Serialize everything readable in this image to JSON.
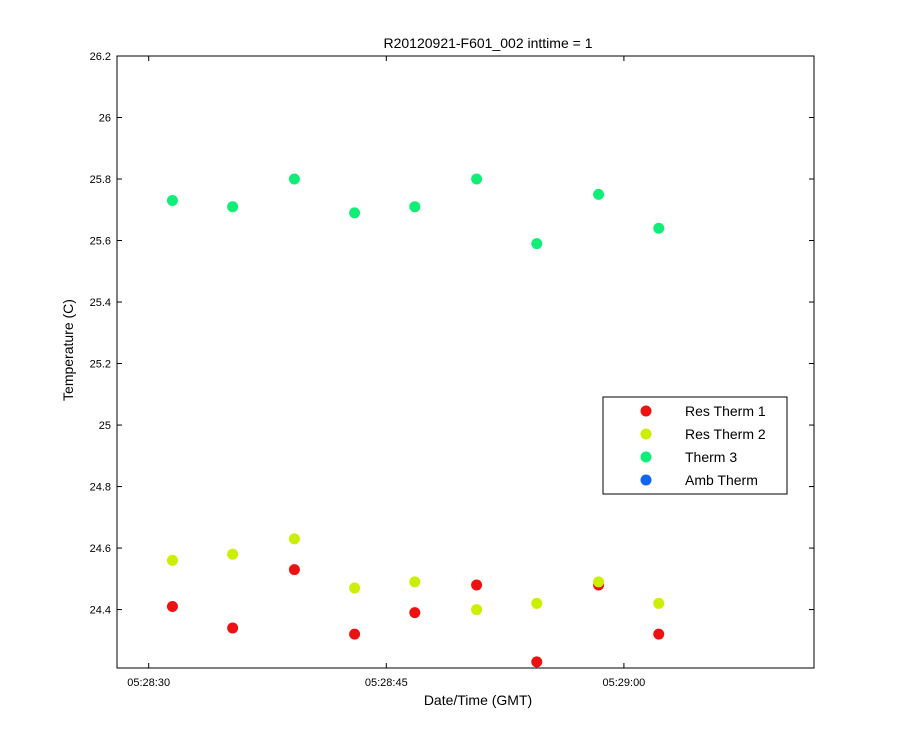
{
  "chart_data": {
    "type": "scatter",
    "title": "R20120921-F601_002 inttime = 1",
    "xlabel": "Date/Time (GMT)",
    "ylabel": "Temperature (C)",
    "x_axis_type": "time",
    "xlim": [
      "05:28:28",
      "05:29:12"
    ],
    "ylim": [
      24.21,
      26.2
    ],
    "x_ticks": [
      "05:28:30",
      "05:28:45",
      "05:29:00"
    ],
    "y_ticks": [
      "24.4",
      "24.6",
      "24.8",
      "25",
      "25.2",
      "25.4",
      "25.6",
      "25.8",
      "26",
      "26.2"
    ],
    "grid": false,
    "legend_position": "center-right",
    "x": [
      "05:28:31.5",
      "05:28:35.3",
      "05:28:39.2",
      "05:28:43.0",
      "05:28:46.8",
      "05:28:50.7",
      "05:28:54.5",
      "05:28:58.4",
      "05:29:02.2"
    ],
    "series": [
      {
        "name": "Res Therm 1",
        "color": "#ee1111",
        "values": [
          24.41,
          24.34,
          24.53,
          24.32,
          24.39,
          24.48,
          24.23,
          24.48,
          24.32
        ]
      },
      {
        "name": "Res Therm 2",
        "color": "#ccee00",
        "values": [
          24.56,
          24.58,
          24.63,
          24.47,
          24.49,
          24.4,
          24.42,
          24.49,
          24.42
        ]
      },
      {
        "name": "Therm 3",
        "color": "#11ee77",
        "values": [
          25.73,
          25.71,
          25.8,
          25.69,
          25.71,
          25.8,
          25.59,
          25.75,
          25.64
        ]
      },
      {
        "name": "Amb Therm",
        "color": "#1166ee",
        "values": []
      }
    ]
  }
}
